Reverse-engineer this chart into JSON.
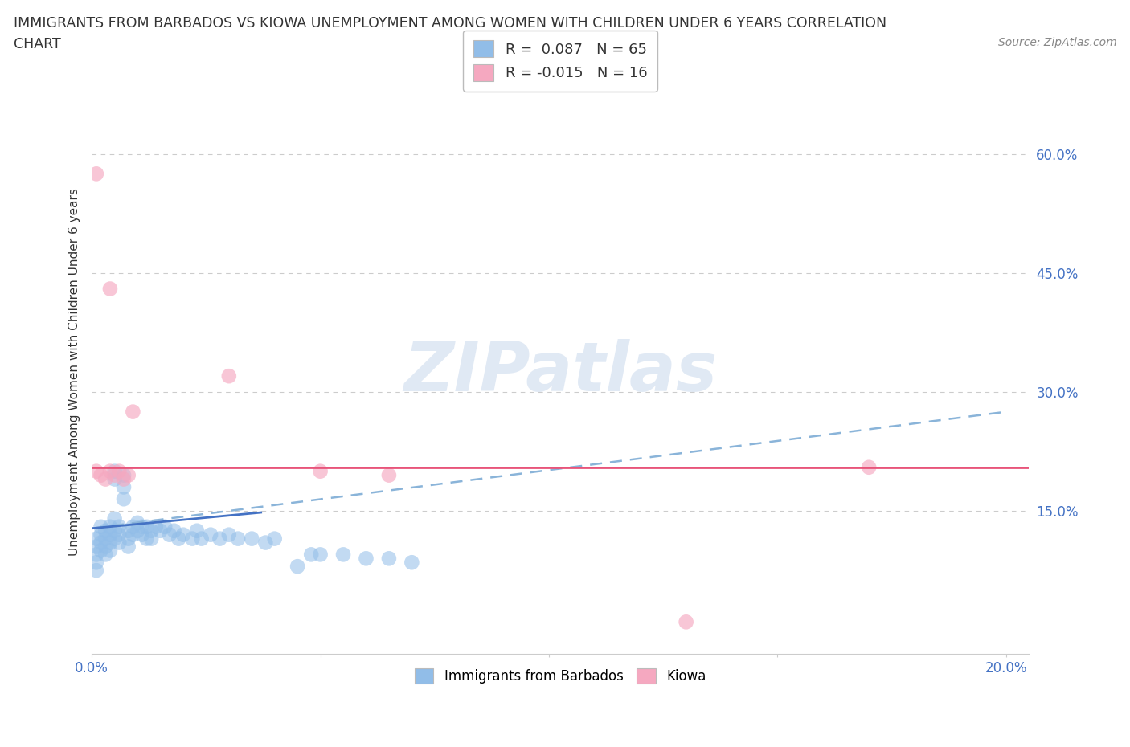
{
  "title_line1": "IMMIGRANTS FROM BARBADOS VS KIOWA UNEMPLOYMENT AMONG WOMEN WITH CHILDREN UNDER 6 YEARS CORRELATION",
  "title_line2": "CHART",
  "source_text": "Source: ZipAtlas.com",
  "ylabel": "Unemployment Among Women with Children Under 6 years",
  "xlim": [
    0.0,
    0.205
  ],
  "ylim": [
    -0.03,
    0.68
  ],
  "xtick_vals": [
    0.0,
    0.05,
    0.1,
    0.15,
    0.2
  ],
  "xtick_labels": [
    "0.0%",
    "",
    "",
    "",
    "20.0%"
  ],
  "ytick_vals": [
    0.15,
    0.3,
    0.45,
    0.6
  ],
  "ytick_labels": [
    "15.0%",
    "30.0%",
    "45.0%",
    "60.0%"
  ],
  "grid_color": "#cccccc",
  "bg_color": "#ffffff",
  "blue_dot_color": "#91bde8",
  "pink_dot_color": "#f5a8c0",
  "blue_trend_color": "#4472c4",
  "pink_trend_color": "#e8547a",
  "dashed_color": "#8ab4d9",
  "R_blue": 0.087,
  "N_blue": 65,
  "R_pink": -0.015,
  "N_pink": 16,
  "legend_label_blue": "Immigrants from Barbados",
  "legend_label_pink": "Kiowa",
  "watermark": "ZIPatlas",
  "title_color": "#333333",
  "tick_color": "#4472c4",
  "source_color": "#888888",
  "blue_x": [
    0.001,
    0.001,
    0.001,
    0.001,
    0.001,
    0.002,
    0.002,
    0.002,
    0.002,
    0.003,
    0.003,
    0.003,
    0.003,
    0.004,
    0.004,
    0.004,
    0.004,
    0.005,
    0.005,
    0.005,
    0.005,
    0.005,
    0.006,
    0.006,
    0.006,
    0.007,
    0.007,
    0.007,
    0.008,
    0.008,
    0.008,
    0.009,
    0.009,
    0.01,
    0.01,
    0.011,
    0.011,
    0.012,
    0.012,
    0.013,
    0.013,
    0.014,
    0.015,
    0.016,
    0.017,
    0.018,
    0.019,
    0.02,
    0.022,
    0.023,
    0.024,
    0.026,
    0.028,
    0.03,
    0.032,
    0.035,
    0.038,
    0.04,
    0.045,
    0.048,
    0.05,
    0.055,
    0.06,
    0.065,
    0.07
  ],
  "blue_y": [
    0.115,
    0.105,
    0.095,
    0.085,
    0.075,
    0.13,
    0.12,
    0.11,
    0.1,
    0.125,
    0.115,
    0.105,
    0.095,
    0.13,
    0.12,
    0.11,
    0.1,
    0.2,
    0.19,
    0.14,
    0.125,
    0.115,
    0.13,
    0.12,
    0.11,
    0.195,
    0.18,
    0.165,
    0.125,
    0.115,
    0.105,
    0.13,
    0.12,
    0.135,
    0.125,
    0.13,
    0.12,
    0.13,
    0.115,
    0.125,
    0.115,
    0.13,
    0.125,
    0.13,
    0.12,
    0.125,
    0.115,
    0.12,
    0.115,
    0.125,
    0.115,
    0.12,
    0.115,
    0.12,
    0.115,
    0.115,
    0.11,
    0.115,
    0.08,
    0.095,
    0.095,
    0.095,
    0.09,
    0.09,
    0.085
  ],
  "pink_x": [
    0.001,
    0.001,
    0.002,
    0.003,
    0.004,
    0.004,
    0.005,
    0.006,
    0.007,
    0.008,
    0.009,
    0.03,
    0.05,
    0.065,
    0.13,
    0.17
  ],
  "pink_y": [
    0.575,
    0.2,
    0.195,
    0.19,
    0.43,
    0.2,
    0.195,
    0.2,
    0.19,
    0.195,
    0.275,
    0.32,
    0.2,
    0.195,
    0.01,
    0.205
  ],
  "blue_trendline_x": [
    0.0,
    0.2
  ],
  "blue_trendline_y": [
    0.128,
    0.275
  ],
  "blue_solidline_x": [
    0.0,
    0.037
  ],
  "blue_solidline_y": [
    0.128,
    0.148
  ],
  "pink_trendline_y": 0.205
}
